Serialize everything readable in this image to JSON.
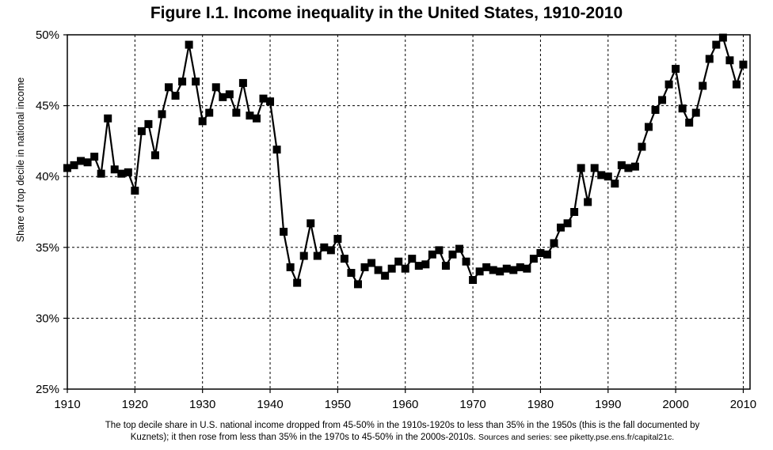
{
  "chart_data": {
    "type": "line",
    "title": "Figure I.1. Income inequality in the United States, 1910-2010",
    "ylabel": "Share of top decile in national income",
    "xlabel": "",
    "xlim": [
      1910,
      2011
    ],
    "ylim": [
      0.25,
      0.5
    ],
    "x_ticks": [
      1910,
      1920,
      1930,
      1940,
      1950,
      1960,
      1970,
      1980,
      1990,
      2000,
      2010
    ],
    "x_tick_labels": [
      "1910",
      "1920",
      "1930",
      "1940",
      "1950",
      "1960",
      "1970",
      "1980",
      "1990",
      "2000",
      "2010"
    ],
    "y_ticks": [
      0.25,
      0.3,
      0.35,
      0.4,
      0.45,
      0.5
    ],
    "y_tick_labels": [
      "25%",
      "30%",
      "35%",
      "40%",
      "45%",
      "50%"
    ],
    "grid": true,
    "marker": "square",
    "line_color": "#000000",
    "series": [
      {
        "x": [
          1910,
          1911,
          1912,
          1913,
          1914,
          1915,
          1916,
          1917,
          1918,
          1919,
          1920,
          1921,
          1922,
          1923,
          1924,
          1925,
          1926,
          1927,
          1928,
          1929,
          1930,
          1931,
          1932,
          1933,
          1934,
          1935,
          1936,
          1937,
          1938,
          1939,
          1940,
          1941,
          1942,
          1943,
          1944,
          1945,
          1946,
          1947,
          1948,
          1949,
          1950,
          1951,
          1952,
          1953,
          1954,
          1955,
          1956,
          1957,
          1958,
          1959,
          1960,
          1961,
          1962,
          1963,
          1964,
          1965,
          1966,
          1967,
          1968,
          1969,
          1970,
          1971,
          1972,
          1973,
          1974,
          1975,
          1976,
          1977,
          1978,
          1979,
          1980,
          1981,
          1982,
          1983,
          1984,
          1985,
          1986,
          1987,
          1988,
          1989,
          1990,
          1991,
          1992,
          1993,
          1994,
          1995,
          1996,
          1997,
          1998,
          1999,
          2000,
          2001,
          2002,
          2003,
          2004,
          2005,
          2006,
          2007,
          2008,
          2009,
          2010
        ],
        "values": [
          0.406,
          0.408,
          0.411,
          0.41,
          0.414,
          0.402,
          0.441,
          0.405,
          0.402,
          0.403,
          0.39,
          0.432,
          0.437,
          0.415,
          0.444,
          0.463,
          0.457,
          0.467,
          0.493,
          0.467,
          0.439,
          0.445,
          0.463,
          0.456,
          0.458,
          0.445,
          0.466,
          0.443,
          0.441,
          0.455,
          0.453,
          0.419,
          0.361,
          0.336,
          0.325,
          0.344,
          0.367,
          0.344,
          0.35,
          0.348,
          0.356,
          0.342,
          0.332,
          0.324,
          0.336,
          0.339,
          0.334,
          0.33,
          0.335,
          0.34,
          0.335,
          0.342,
          0.337,
          0.338,
          0.345,
          0.348,
          0.337,
          0.345,
          0.349,
          0.34,
          0.327,
          0.333,
          0.336,
          0.334,
          0.333,
          0.335,
          0.334,
          0.336,
          0.335,
          0.342,
          0.346,
          0.345,
          0.353,
          0.364,
          0.367,
          0.375,
          0.406,
          0.382,
          0.406,
          0.401,
          0.4,
          0.395,
          0.408,
          0.406,
          0.407,
          0.421,
          0.435,
          0.447,
          0.454,
          0.465,
          0.476,
          0.448,
          0.438,
          0.445,
          0.464,
          0.483,
          0.493,
          0.498,
          0.482,
          0.465,
          0.479
        ]
      }
    ]
  },
  "caption": {
    "line1": "The top decile share in U.S. national income dropped from 45-50% in the 1910s-1920s to less than 35% in the 1950s (this is the fall documented by",
    "line2_main": "Kuznets); it then rose from less than 35% in the 1970s to 45-50% in the 2000s-2010s.",
    "line2_sources": "Sources and series: see piketty.pse.ens.fr/capital21c."
  }
}
